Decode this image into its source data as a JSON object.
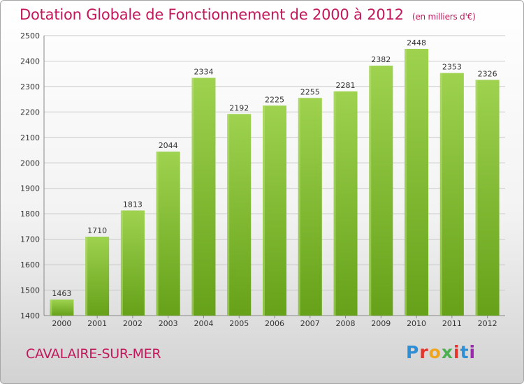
{
  "header": {
    "title": "Dotation Globale de Fonctionnement de 2000 à 2012",
    "unit": "(en milliers d'€)"
  },
  "footer": {
    "commune": "CAVALAIRE-SUR-MER",
    "logo": "Proxiti"
  },
  "colors": {
    "title": "#c2185b",
    "bar_light": "#9ed24f",
    "bar_dark": "#66a119",
    "grid": "#c8c8c8"
  },
  "chart_data": {
    "type": "bar",
    "title": "Dotation Globale de Fonctionnement de 2000 à 2012",
    "subtitle": "(en milliers d'€)",
    "xlabel": "",
    "ylabel": "",
    "categories": [
      "2000",
      "2001",
      "2002",
      "2003",
      "2004",
      "2005",
      "2006",
      "2007",
      "2008",
      "2009",
      "2010",
      "2011",
      "2012"
    ],
    "values": [
      1463,
      1710,
      1813,
      2044,
      2334,
      2192,
      2225,
      2255,
      2281,
      2382,
      2448,
      2353,
      2326
    ],
    "ylim": [
      1400,
      2500
    ],
    "yticks": [
      1400,
      1500,
      1600,
      1700,
      1800,
      1900,
      2000,
      2100,
      2200,
      2300,
      2400,
      2500
    ],
    "grid": true,
    "data_labels": true
  }
}
